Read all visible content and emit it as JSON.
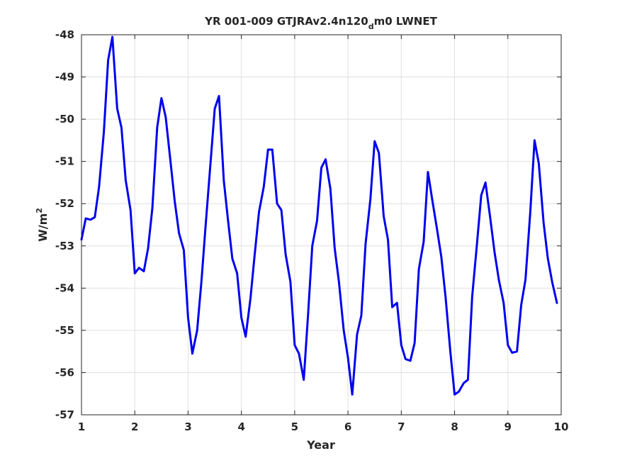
{
  "chart_data": {
    "type": "line",
    "title": {
      "prefix": "YR 001-009 GTJRAv2.4n120",
      "subscript": "d",
      "suffix": "m0 LWNET"
    },
    "xlabel": "Year",
    "ylabel": {
      "base": "W/m",
      "sup": "2"
    },
    "xlim": [
      1,
      10
    ],
    "ylim": [
      -57,
      -48
    ],
    "xticks": [
      1,
      2,
      3,
      4,
      5,
      6,
      7,
      8,
      9,
      10
    ],
    "yticks": [
      -48,
      -49,
      -50,
      -51,
      -52,
      -53,
      -54,
      -55,
      -56,
      -57
    ],
    "grid": true,
    "line_color": "#0000ee",
    "series": [
      {
        "x": [
          1.0,
          1.08,
          1.17,
          1.25,
          1.33,
          1.42,
          1.5,
          1.58,
          1.67,
          1.75,
          1.83,
          1.92,
          2.0,
          2.08,
          2.17,
          2.25,
          2.33,
          2.42,
          2.5,
          2.58,
          2.67,
          2.75,
          2.83,
          2.92,
          3.0,
          3.08,
          3.17,
          3.25,
          3.33,
          3.42,
          3.5,
          3.58,
          3.67,
          3.75,
          3.83,
          3.92,
          4.0,
          4.08,
          4.17,
          4.25,
          4.33,
          4.42,
          4.5,
          4.58,
          4.67,
          4.75,
          4.83,
          4.92,
          5.0,
          5.08,
          5.17,
          5.25,
          5.33,
          5.42,
          5.5,
          5.58,
          5.67,
          5.75,
          5.83,
          5.92,
          6.0,
          6.08,
          6.17,
          6.25,
          6.33,
          6.42,
          6.5,
          6.58,
          6.67,
          6.75,
          6.83,
          6.92,
          7.0,
          7.08,
          7.17,
          7.25,
          7.33,
          7.42,
          7.5,
          7.58,
          7.67,
          7.75,
          7.83,
          7.92,
          8.0,
          8.08,
          8.17,
          8.25,
          8.33,
          8.42,
          8.5,
          8.58,
          8.67,
          8.75,
          8.83,
          8.92,
          9.0,
          9.08,
          9.17,
          9.25,
          9.33,
          9.42,
          9.5,
          9.58,
          9.67,
          9.75,
          9.83,
          9.92
        ],
        "y": [
          -52.85,
          -52.35,
          -52.38,
          -52.32,
          -51.6,
          -50.3,
          -48.6,
          -48.05,
          -49.75,
          -50.2,
          -51.45,
          -52.15,
          -53.65,
          -53.52,
          -53.6,
          -53.05,
          -52.1,
          -50.2,
          -49.5,
          -49.95,
          -51.0,
          -51.95,
          -52.7,
          -53.1,
          -54.7,
          -55.55,
          -55.0,
          -53.85,
          -52.5,
          -51.05,
          -49.75,
          -49.45,
          -51.45,
          -52.4,
          -53.3,
          -53.65,
          -54.7,
          -55.15,
          -54.25,
          -53.2,
          -52.2,
          -51.6,
          -50.72,
          -50.72,
          -52.0,
          -52.15,
          -53.2,
          -53.85,
          -55.35,
          -55.55,
          -56.17,
          -54.65,
          -53.0,
          -52.4,
          -51.15,
          -50.95,
          -51.65,
          -53.05,
          -53.85,
          -55.0,
          -55.65,
          -56.52,
          -55.1,
          -54.65,
          -52.95,
          -51.9,
          -50.52,
          -50.8,
          -52.3,
          -52.85,
          -54.45,
          -54.35,
          -55.35,
          -55.68,
          -55.72,
          -55.3,
          -53.55,
          -52.9,
          -51.25,
          -51.9,
          -52.6,
          -53.25,
          -54.2,
          -55.5,
          -56.52,
          -56.45,
          -56.25,
          -56.17,
          -54.2,
          -52.95,
          -51.8,
          -51.5,
          -52.35,
          -53.15,
          -53.8,
          -54.35,
          -55.35,
          -55.53,
          -55.5,
          -54.4,
          -53.8,
          -52.2,
          -50.5,
          -51.05,
          -52.45,
          -53.3,
          -53.85,
          -54.35
        ]
      }
    ]
  }
}
